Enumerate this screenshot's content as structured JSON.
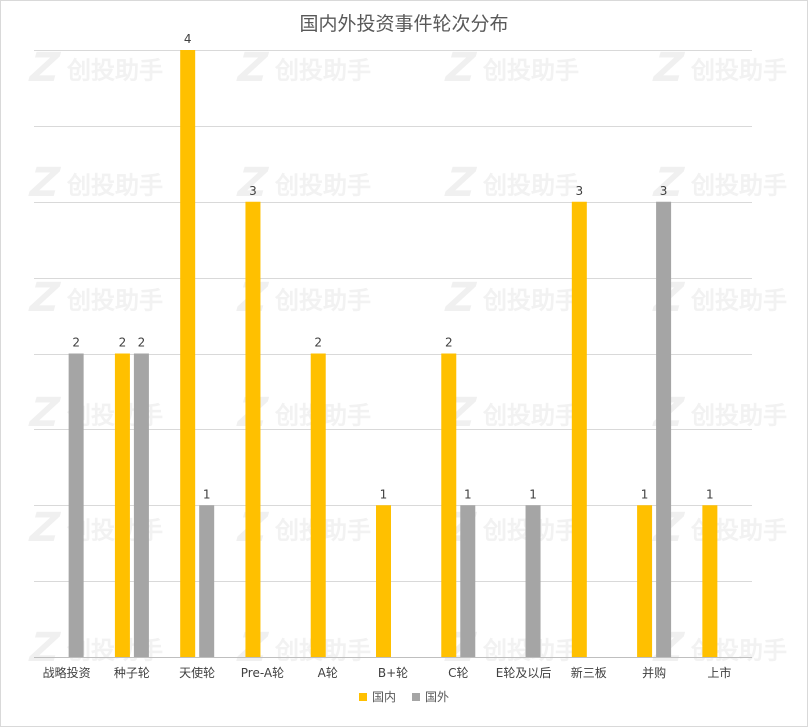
{
  "watermark": {
    "logo": "Z",
    "text": "创投助手"
  },
  "chart_data": {
    "type": "bar",
    "title": "国内外投资事件轮次分布",
    "categories": [
      "战略投资",
      "种子轮",
      "天使轮",
      "Pre-A轮",
      "A轮",
      "B+轮",
      "C轮",
      "E轮及以后",
      "新三板",
      "并购",
      "上市"
    ],
    "series": [
      {
        "name": "国内",
        "color": "#ffc000",
        "values": [
          null,
          2,
          4,
          3,
          2,
          1,
          2,
          null,
          3,
          1,
          1
        ]
      },
      {
        "name": "国外",
        "color": "#a5a5a5",
        "values": [
          2,
          2,
          1,
          null,
          null,
          null,
          1,
          1,
          null,
          3,
          null
        ]
      }
    ],
    "ylim": [
      0,
      4
    ],
    "grid": true,
    "legend": "bottom",
    "data_labels": true
  }
}
